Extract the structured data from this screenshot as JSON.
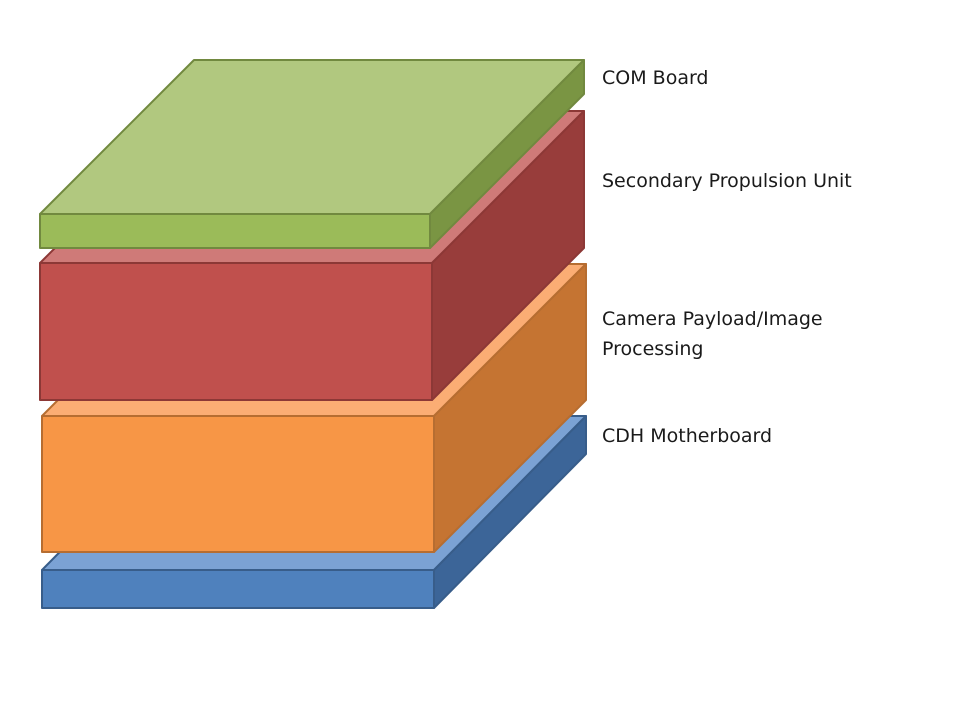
{
  "layers": [
    {
      "id": "com-board",
      "label_lines": [
        "COM Board"
      ],
      "colors": {
        "top": "#b1c87f",
        "front": "#9bbb59",
        "side": "#7a9543",
        "stroke": "#71893f"
      }
    },
    {
      "id": "secondary-propulsion-unit",
      "label_lines": [
        "Secondary Propulsion Unit"
      ],
      "colors": {
        "top": "#cf7a78",
        "front": "#c0504d",
        "side": "#983d3b",
        "stroke": "#8c3836"
      }
    },
    {
      "id": "camera-payload",
      "label_lines": [
        "Camera Payload/Image",
        "Processing"
      ],
      "colors": {
        "top": "#fbad74",
        "front": "#f79646",
        "side": "#c57432",
        "stroke": "#b66d31"
      }
    },
    {
      "id": "cdh-motherboard",
      "label_lines": [
        "CDH Motherboard"
      ],
      "colors": {
        "top": "#7ba2d4",
        "front": "#4f81bd",
        "side": "#3c6598",
        "stroke": "#385d8a"
      }
    }
  ]
}
